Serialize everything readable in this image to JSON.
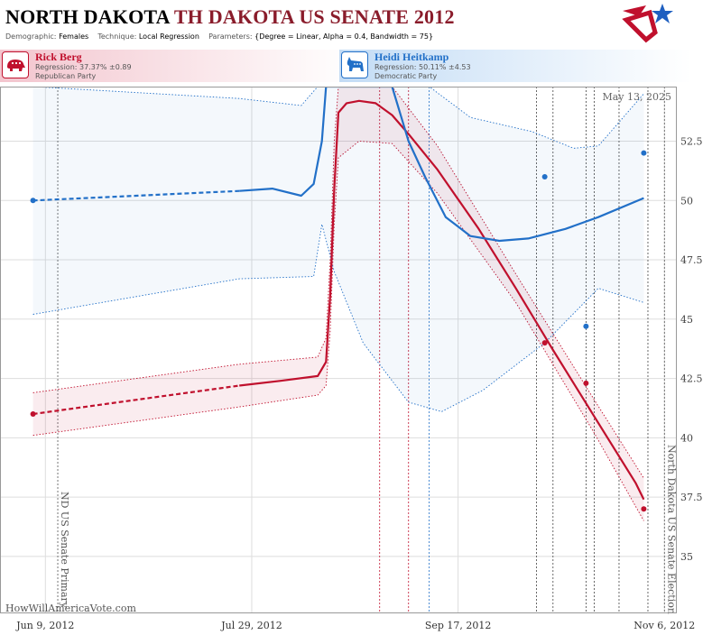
{
  "header": {
    "title_part1": "NORTH DAKOTA",
    "title_part2": "TH DAKOTA US SENATE 2012",
    "demographic_label": "Demographic:",
    "demographic_value": "Females",
    "technique_label": "Technique:",
    "technique_value": "Local Regression",
    "parameters_label": "Parameters:",
    "parameters_value": "{Degree = Linear, Alpha = 0.4, Bandwidth = 75}"
  },
  "candidates": [
    {
      "name": "Rick Berg",
      "regression": "Regression: 37.37% ±0.89",
      "party": "Republican Party",
      "color": "#c0102d",
      "icon": "elephant-icon"
    },
    {
      "name": "Heidi Heitkamp",
      "regression": "Regression: 50.11% ±4.53",
      "party": "Democratic Party",
      "color": "#2270c8",
      "icon": "donkey-icon"
    }
  ],
  "date_stamp": "May 13, 2025",
  "credit": "HowWillAmericaVote.com",
  "colors": {
    "republican": "#c0102d",
    "democrat": "#2270c8"
  },
  "chart_data": {
    "type": "line",
    "x_type": "date",
    "ylim": [
      32.6,
      54.8
    ],
    "xlim": [
      "2012-05-29",
      "2012-11-09"
    ],
    "y_ticks": [
      35,
      37.5,
      40,
      42.5,
      45,
      47.5,
      50,
      52.5
    ],
    "y_tick_labels": [
      "35",
      "37.5",
      "40",
      "42.5",
      "45",
      "47.5",
      "50",
      "52.5"
    ],
    "x_ticks": [
      "2012-06-09",
      "2012-07-29",
      "2012-09-17",
      "2012-11-06"
    ],
    "x_tick_labels": [
      "Jun 9, 2012",
      "Jul 29, 2012",
      "Sep 17, 2012",
      "Nov 6, 2012"
    ],
    "grid": true,
    "events": [
      {
        "date": "2012-06-12",
        "label": "ND US Senate Primary",
        "color": "#555"
      },
      {
        "date": "2012-11-06",
        "label": "North Dakota US Senate Election",
        "color": "#555"
      }
    ],
    "poll_lines": [
      {
        "date": "2012-08-29",
        "color": "#c0102d"
      },
      {
        "date": "2012-09-05",
        "color": "#c0102d"
      },
      {
        "date": "2012-09-10",
        "color": "#2270c8"
      },
      {
        "date": "2012-10-06",
        "color": "#444"
      },
      {
        "date": "2012-10-10",
        "color": "#444"
      },
      {
        "date": "2012-10-18",
        "color": "#444"
      },
      {
        "date": "2012-10-20",
        "color": "#444"
      },
      {
        "date": "2012-10-26",
        "color": "#444"
      },
      {
        "date": "2012-11-02",
        "color": "#444"
      }
    ],
    "series": [
      {
        "name": "Rick Berg",
        "color": "#c0102d",
        "polls": [
          {
            "date": "2012-06-06",
            "value": 41.0
          },
          {
            "date": "2012-10-08",
            "value": 44.0
          },
          {
            "date": "2012-10-18",
            "value": 42.3
          },
          {
            "date": "2012-11-01",
            "value": 37.0
          }
        ],
        "trend_dashed": [
          {
            "date": "2012-06-06",
            "value": 41.0
          },
          {
            "date": "2012-07-26",
            "value": 42.2
          }
        ],
        "trend": [
          {
            "date": "2012-07-26",
            "value": 42.2
          },
          {
            "date": "2012-08-05",
            "value": 42.4
          },
          {
            "date": "2012-08-14",
            "value": 42.6
          },
          {
            "date": "2012-08-16",
            "value": 43.2
          },
          {
            "date": "2012-08-17",
            "value": 46.0
          },
          {
            "date": "2012-08-18",
            "value": 50.5
          },
          {
            "date": "2012-08-19",
            "value": 53.7
          },
          {
            "date": "2012-08-21",
            "value": 54.1
          },
          {
            "date": "2012-08-24",
            "value": 54.2
          },
          {
            "date": "2012-08-28",
            "value": 54.1
          },
          {
            "date": "2012-09-01",
            "value": 53.6
          },
          {
            "date": "2012-09-05",
            "value": 52.8
          },
          {
            "date": "2012-09-12",
            "value": 51.3
          },
          {
            "date": "2012-09-22",
            "value": 48.8
          },
          {
            "date": "2012-10-01",
            "value": 46.3
          },
          {
            "date": "2012-10-10",
            "value": 43.7
          },
          {
            "date": "2012-10-20",
            "value": 40.9
          },
          {
            "date": "2012-10-30",
            "value": 38.1
          },
          {
            "date": "2012-11-01",
            "value": 37.4
          }
        ],
        "band_upper": [
          {
            "date": "2012-06-06",
            "value": 41.9
          },
          {
            "date": "2012-07-26",
            "value": 43.1
          },
          {
            "date": "2012-08-14",
            "value": 43.4
          },
          {
            "date": "2012-08-16",
            "value": 44.2
          },
          {
            "date": "2012-08-17",
            "value": 47.5
          },
          {
            "date": "2012-08-18",
            "value": 52.5
          },
          {
            "date": "2012-08-19",
            "value": 54.8
          },
          {
            "date": "2012-09-01",
            "value": 54.8
          },
          {
            "date": "2012-09-12",
            "value": 52.3
          },
          {
            "date": "2012-10-01",
            "value": 46.9
          },
          {
            "date": "2012-10-20",
            "value": 41.6
          },
          {
            "date": "2012-11-01",
            "value": 38.3
          }
        ],
        "band_lower": [
          {
            "date": "2012-06-06",
            "value": 40.1
          },
          {
            "date": "2012-07-26",
            "value": 41.3
          },
          {
            "date": "2012-08-14",
            "value": 41.8
          },
          {
            "date": "2012-08-16",
            "value": 42.2
          },
          {
            "date": "2012-08-17",
            "value": 44.5
          },
          {
            "date": "2012-08-18",
            "value": 49.0
          },
          {
            "date": "2012-08-19",
            "value": 51.8
          },
          {
            "date": "2012-08-24",
            "value": 52.5
          },
          {
            "date": "2012-09-01",
            "value": 52.4
          },
          {
            "date": "2012-09-12",
            "value": 50.3
          },
          {
            "date": "2012-10-01",
            "value": 45.7
          },
          {
            "date": "2012-10-20",
            "value": 40.2
          },
          {
            "date": "2012-11-01",
            "value": 36.5
          }
        ]
      },
      {
        "name": "Heidi Heitkamp",
        "color": "#2270c8",
        "polls": [
          {
            "date": "2012-06-06",
            "value": 50.0
          },
          {
            "date": "2012-10-08",
            "value": 51.0
          },
          {
            "date": "2012-10-18",
            "value": 44.7
          },
          {
            "date": "2012-11-01",
            "value": 52.0
          }
        ],
        "trend_dashed": [
          {
            "date": "2012-06-06",
            "value": 50.0
          },
          {
            "date": "2012-07-26",
            "value": 50.4
          }
        ],
        "trend": [
          {
            "date": "2012-07-26",
            "value": 50.4
          },
          {
            "date": "2012-08-03",
            "value": 50.5
          },
          {
            "date": "2012-08-10",
            "value": 50.2
          },
          {
            "date": "2012-08-13",
            "value": 50.7
          },
          {
            "date": "2012-08-15",
            "value": 52.5
          },
          {
            "date": "2012-08-16",
            "value": 54.8
          },
          {
            "date": "2012-09-01",
            "value": 54.8
          },
          {
            "date": "2012-09-05",
            "value": 52.5
          },
          {
            "date": "2012-09-09",
            "value": 51.0
          },
          {
            "date": "2012-09-14",
            "value": 49.3
          },
          {
            "date": "2012-09-20",
            "value": 48.5
          },
          {
            "date": "2012-09-27",
            "value": 48.3
          },
          {
            "date": "2012-10-04",
            "value": 48.4
          },
          {
            "date": "2012-10-13",
            "value": 48.8
          },
          {
            "date": "2012-10-21",
            "value": 49.3
          },
          {
            "date": "2012-11-01",
            "value": 50.1
          }
        ],
        "band_upper": [
          {
            "date": "2012-06-06",
            "value": 54.8
          },
          {
            "date": "2012-07-26",
            "value": 54.3
          },
          {
            "date": "2012-08-10",
            "value": 54.0
          },
          {
            "date": "2012-08-14",
            "value": 54.8
          },
          {
            "date": "2012-09-10",
            "value": 54.8
          },
          {
            "date": "2012-09-20",
            "value": 53.5
          },
          {
            "date": "2012-10-05",
            "value": 52.9
          },
          {
            "date": "2012-10-15",
            "value": 52.2
          },
          {
            "date": "2012-10-21",
            "value": 52.3
          },
          {
            "date": "2012-11-01",
            "value": 54.5
          }
        ],
        "band_lower": [
          {
            "date": "2012-06-06",
            "value": 45.2
          },
          {
            "date": "2012-07-26",
            "value": 46.7
          },
          {
            "date": "2012-08-13",
            "value": 46.8
          },
          {
            "date": "2012-08-15",
            "value": 49.0
          },
          {
            "date": "2012-08-18",
            "value": 47.0
          },
          {
            "date": "2012-08-25",
            "value": 44.0
          },
          {
            "date": "2012-09-05",
            "value": 41.5
          },
          {
            "date": "2012-09-13",
            "value": 41.1
          },
          {
            "date": "2012-09-23",
            "value": 42.0
          },
          {
            "date": "2012-10-08",
            "value": 44.0
          },
          {
            "date": "2012-10-21",
            "value": 46.3
          },
          {
            "date": "2012-11-01",
            "value": 45.7
          }
        ]
      }
    ]
  }
}
